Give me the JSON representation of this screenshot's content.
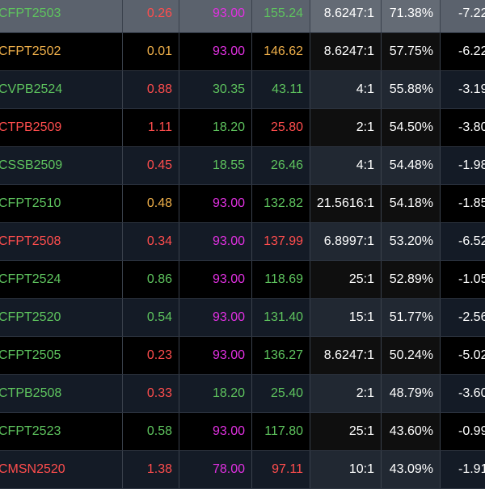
{
  "colors": {
    "up": "#5ec45e",
    "down": "#ff4d4d",
    "ref": "#f0b04a",
    "ceiling": "#e030e0",
    "text": "#ffffff"
  },
  "rows": [
    {
      "symbol": "CFPT2503",
      "change": "0.26",
      "exercise": "93.00",
      "price": "155.24",
      "ratio": "8.6247:1",
      "pct": "71.38%",
      "last": "-7.22",
      "symbol_color": "up",
      "change_color": "down",
      "exercise_color": "ceiling",
      "price_color": "up",
      "selected": true
    },
    {
      "symbol": "CFPT2502",
      "change": "0.01",
      "exercise": "93.00",
      "price": "146.62",
      "ratio": "8.6247:1",
      "pct": "57.75%",
      "last": "-6.22",
      "symbol_color": "ref",
      "change_color": "ref",
      "exercise_color": "ceiling",
      "price_color": "ref",
      "selected": false
    },
    {
      "symbol": "CVPB2524",
      "change": "0.88",
      "exercise": "30.35",
      "price": "43.11",
      "ratio": "4:1",
      "pct": "55.88%",
      "last": "-3.19",
      "symbol_color": "up",
      "change_color": "down",
      "exercise_color": "up",
      "price_color": "up",
      "selected": false
    },
    {
      "symbol": "CTPB2509",
      "change": "1.11",
      "exercise": "18.20",
      "price": "25.80",
      "ratio": "2:1",
      "pct": "54.50%",
      "last": "-3.80",
      "symbol_color": "down",
      "change_color": "down",
      "exercise_color": "up",
      "price_color": "down",
      "selected": false
    },
    {
      "symbol": "CSSB2509",
      "change": "0.45",
      "exercise": "18.55",
      "price": "26.46",
      "ratio": "4:1",
      "pct": "54.48%",
      "last": "-1.98",
      "symbol_color": "up",
      "change_color": "down",
      "exercise_color": "up",
      "price_color": "up",
      "selected": false
    },
    {
      "symbol": "CFPT2510",
      "change": "0.48",
      "exercise": "93.00",
      "price": "132.82",
      "ratio": "21.5616:1",
      "pct": "54.18%",
      "last": "-1.85",
      "symbol_color": "up",
      "change_color": "ref",
      "exercise_color": "ceiling",
      "price_color": "up",
      "selected": false
    },
    {
      "symbol": "CFPT2508",
      "change": "0.34",
      "exercise": "93.00",
      "price": "137.99",
      "ratio": "6.8997:1",
      "pct": "53.20%",
      "last": "-6.52",
      "symbol_color": "down",
      "change_color": "down",
      "exercise_color": "ceiling",
      "price_color": "down",
      "selected": false
    },
    {
      "symbol": "CFPT2524",
      "change": "0.86",
      "exercise": "93.00",
      "price": "118.69",
      "ratio": "25:1",
      "pct": "52.89%",
      "last": "-1.05",
      "symbol_color": "up",
      "change_color": "up",
      "exercise_color": "ceiling",
      "price_color": "up",
      "selected": false
    },
    {
      "symbol": "CFPT2520",
      "change": "0.54",
      "exercise": "93.00",
      "price": "131.40",
      "ratio": "15:1",
      "pct": "51.77%",
      "last": "-2.56",
      "symbol_color": "up",
      "change_color": "up",
      "exercise_color": "ceiling",
      "price_color": "up",
      "selected": false
    },
    {
      "symbol": "CFPT2505",
      "change": "0.23",
      "exercise": "93.00",
      "price": "136.27",
      "ratio": "8.6247:1",
      "pct": "50.24%",
      "last": "-5.02",
      "symbol_color": "up",
      "change_color": "down",
      "exercise_color": "ceiling",
      "price_color": "up",
      "selected": false
    },
    {
      "symbol": "CTPB2508",
      "change": "0.33",
      "exercise": "18.20",
      "price": "25.40",
      "ratio": "2:1",
      "pct": "48.79%",
      "last": "-3.60",
      "symbol_color": "up",
      "change_color": "down",
      "exercise_color": "up",
      "price_color": "up",
      "selected": false
    },
    {
      "symbol": "CFPT2523",
      "change": "0.58",
      "exercise": "93.00",
      "price": "117.80",
      "ratio": "25:1",
      "pct": "43.60%",
      "last": "-0.99",
      "symbol_color": "up",
      "change_color": "up",
      "exercise_color": "ceiling",
      "price_color": "up",
      "selected": false
    },
    {
      "symbol": "CMSN2520",
      "change": "1.38",
      "exercise": "78.00",
      "price": "97.11",
      "ratio": "10:1",
      "pct": "43.09%",
      "last": "-1.91",
      "symbol_color": "down",
      "change_color": "down",
      "exercise_color": "ceiling",
      "price_color": "down",
      "selected": false
    }
  ]
}
